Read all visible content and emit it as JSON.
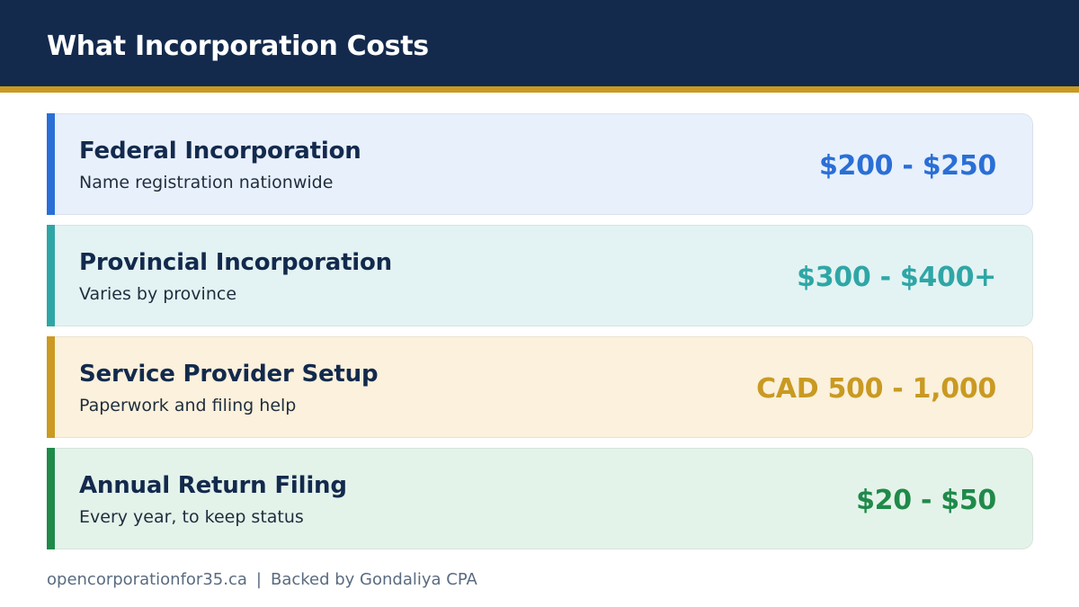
{
  "header": {
    "title": "What Incorporation Costs"
  },
  "colors": {
    "header_bg": "#132a4d",
    "header_rule": "#c99a22"
  },
  "cards": [
    {
      "name": "Federal Incorporation",
      "description": "Name registration nationwide",
      "price": "$200 - $250",
      "accent": "#2a6fd6",
      "bg": "#e8f0fc",
      "price_color": "#2a6fd6"
    },
    {
      "name": "Provincial Incorporation",
      "description": "Varies by province",
      "price": "$300 - $400+",
      "accent": "#2fa6a6",
      "bg": "#e3f3f3",
      "price_color": "#2fa6a6"
    },
    {
      "name": "Service Provider Setup",
      "description": "Paperwork and filing help",
      "price": "CAD 500 - 1,000",
      "accent": "#cc9a22",
      "bg": "#fbf1dc",
      "price_color": "#c99a22"
    },
    {
      "name": "Annual Return Filing",
      "description": "Every year, to keep status",
      "price": "$20 - $50",
      "accent": "#1f8a4a",
      "bg": "#e4f3ea",
      "price_color": "#1f8a4a"
    }
  ],
  "footer": {
    "site": "opencorporationfor35.ca",
    "separator": "|",
    "backer": "Backed by Gondaliya CPA"
  }
}
